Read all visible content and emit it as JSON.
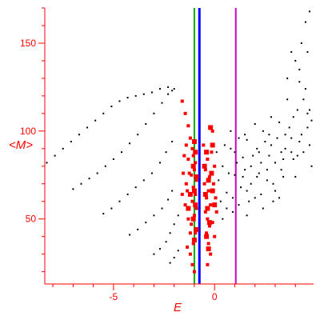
{
  "chart_data": {
    "type": "scatter",
    "xlabel": "E",
    "ylabel": "<M>",
    "xlim": [
      -8.4,
      4.9
    ],
    "ylim": [
      13,
      170
    ],
    "xticks": [
      -5,
      0
    ],
    "yticks": [
      50,
      100,
      150
    ],
    "xtick_labels": [
      "-5",
      "0"
    ],
    "ytick_labels": [
      "50",
      "100",
      "150"
    ],
    "grid": false,
    "colors": {
      "axis": "#ff0000",
      "black_points": "#000000",
      "red_points": "#ff0000",
      "green_line": "#00aa00",
      "blue_line": "#0000ff",
      "magenta_line": "#cc00cc"
    },
    "vertical_lines": [
      {
        "x": -1.0,
        "color": "#00aa00"
      },
      {
        "x": -0.75,
        "color": "#0000ff"
      },
      {
        "x": 1.05,
        "color": "#cc00cc"
      }
    ],
    "series": [
      {
        "marker": "small-dot",
        "color": "#000000",
        "points": [
          [
            -8.3,
            82
          ],
          [
            -7.9,
            86
          ],
          [
            -7.5,
            90
          ],
          [
            -7.1,
            94
          ],
          [
            -6.7,
            98
          ],
          [
            -6.3,
            102
          ],
          [
            -5.9,
            106
          ],
          [
            -5.5,
            110
          ],
          [
            -5.1,
            114
          ],
          [
            -4.7,
            117
          ],
          [
            -4.3,
            119
          ],
          [
            -3.9,
            120
          ],
          [
            -3.5,
            121
          ],
          [
            -3.1,
            122
          ],
          [
            -2.7,
            124
          ],
          [
            -2.3,
            125
          ],
          [
            -2.0,
            124
          ],
          [
            -7.0,
            67
          ],
          [
            -6.6,
            70
          ],
          [
            -6.2,
            73
          ],
          [
            -5.8,
            76
          ],
          [
            -5.4,
            80
          ],
          [
            -5.0,
            84
          ],
          [
            -4.6,
            88
          ],
          [
            -4.2,
            93
          ],
          [
            -3.8,
            98
          ],
          [
            -3.4,
            104
          ],
          [
            -3.0,
            110
          ],
          [
            -2.6,
            116
          ],
          [
            -2.3,
            121
          ],
          [
            -2.1,
            123
          ],
          [
            -5.5,
            53
          ],
          [
            -5.1,
            56
          ],
          [
            -4.7,
            60
          ],
          [
            -4.3,
            64
          ],
          [
            -3.9,
            68
          ],
          [
            -3.5,
            72
          ],
          [
            -3.1,
            76
          ],
          [
            -2.7,
            82
          ],
          [
            -2.4,
            88
          ],
          [
            -2.1,
            94
          ],
          [
            -4.2,
            41
          ],
          [
            -3.8,
            44
          ],
          [
            -3.4,
            48
          ],
          [
            -3.0,
            52
          ],
          [
            -2.6,
            56
          ],
          [
            -2.3,
            61
          ],
          [
            -2.1,
            66
          ],
          [
            -3.0,
            30
          ],
          [
            -2.7,
            33
          ],
          [
            -2.4,
            37
          ],
          [
            -2.2,
            42
          ],
          [
            -2.0,
            47
          ],
          [
            -1.8,
            52
          ],
          [
            -2.2,
            25
          ],
          [
            -2.0,
            28
          ],
          [
            -1.8,
            32
          ],
          [
            0.2,
            72
          ],
          [
            0.4,
            80
          ],
          [
            0.6,
            65
          ],
          [
            0.8,
            90
          ],
          [
            1.0,
            75
          ],
          [
            1.2,
            58
          ],
          [
            1.4,
            85
          ],
          [
            1.6,
            95
          ],
          [
            1.8,
            70
          ],
          [
            2.0,
            62
          ],
          [
            2.2,
            88
          ],
          [
            2.4,
            100
          ],
          [
            2.6,
            78
          ],
          [
            2.8,
            92
          ],
          [
            3.0,
            66
          ],
          [
            3.2,
            105
          ],
          [
            3.4,
            84
          ],
          [
            3.6,
            118
          ],
          [
            3.8,
            96
          ],
          [
            4.0,
            74
          ],
          [
            4.2,
            128
          ],
          [
            4.4,
            88
          ],
          [
            4.6,
            110
          ],
          [
            4.8,
            80
          ],
          [
            0.3,
            60
          ],
          [
            0.5,
            92
          ],
          [
            0.7,
            76
          ],
          [
            0.9,
            54
          ],
          [
            1.1,
            82
          ],
          [
            1.3,
            68
          ],
          [
            1.5,
            98
          ],
          [
            1.7,
            60
          ],
          [
            1.9,
            86
          ],
          [
            2.1,
            74
          ],
          [
            2.3,
            64
          ],
          [
            2.5,
            94
          ],
          [
            2.7,
            86
          ],
          [
            2.9,
            70
          ],
          [
            3.1,
            96
          ],
          [
            3.3,
            78
          ],
          [
            3.5,
            90
          ],
          [
            3.7,
            102
          ],
          [
            3.9,
            84
          ],
          [
            4.1,
            112
          ],
          [
            4.3,
            98
          ],
          [
            4.5,
            124
          ],
          [
            4.7,
            92
          ],
          [
            0.1,
            88
          ],
          [
            0.6,
            56
          ],
          [
            1.2,
            96
          ],
          [
            1.6,
            52
          ],
          [
            2.0,
            104
          ],
          [
            2.4,
            56
          ],
          [
            2.8,
            108
          ],
          [
            3.2,
            62
          ],
          [
            3.6,
            130
          ],
          [
            4.0,
            140
          ],
          [
            4.3,
            150
          ],
          [
            4.5,
            162
          ],
          [
            4.7,
            168
          ],
          [
            4.2,
            135
          ],
          [
            3.8,
            145
          ],
          [
            4.6,
            145
          ],
          [
            1.0,
            88
          ],
          [
            1.4,
            74
          ],
          [
            1.8,
            80
          ],
          [
            2.2,
            76
          ],
          [
            2.6,
            72
          ],
          [
            3.0,
            82
          ],
          [
            3.4,
            74
          ],
          [
            3.8,
            88
          ],
          [
            4.2,
            94
          ],
          [
            4.6,
            102
          ],
          [
            0.8,
            100
          ],
          [
            1.5,
            78
          ],
          [
            2.1,
            90
          ],
          [
            2.7,
            98
          ],
          [
            3.3,
            88
          ],
          [
            3.9,
            108
          ],
          [
            4.4,
            118
          ],
          [
            4.8,
            106
          ],
          [
            0.4,
            50
          ],
          [
            0.9,
            62
          ],
          [
            1.6,
            66
          ],
          [
            2.3,
            82
          ],
          [
            2.9,
            60
          ],
          [
            3.5,
            98
          ],
          [
            4.1,
            86
          ],
          [
            4.7,
            112
          ]
        ]
      },
      {
        "marker": "square",
        "color": "#ff0000",
        "points": [
          [
            -1.6,
            117
          ],
          [
            -1.45,
            110
          ],
          [
            -1.3,
            103
          ],
          [
            -1.2,
            96
          ],
          [
            -1.1,
            90
          ],
          [
            -1.05,
            86
          ],
          [
            -0.95,
            82
          ],
          [
            -1.0,
            78
          ],
          [
            -1.15,
            75
          ],
          [
            -0.9,
            72
          ],
          [
            -1.05,
            68
          ],
          [
            -0.95,
            64
          ],
          [
            -1.1,
            60
          ],
          [
            -0.9,
            56
          ],
          [
            -1.0,
            52
          ],
          [
            -1.15,
            47
          ],
          [
            -0.95,
            42
          ],
          [
            -1.05,
            36
          ],
          [
            -1.2,
            30
          ],
          [
            -1.1,
            24
          ],
          [
            -1.0,
            20
          ],
          [
            -0.55,
            92
          ],
          [
            -0.35,
            84
          ],
          [
            -0.45,
            78
          ],
          [
            -0.25,
            74
          ],
          [
            -0.5,
            70
          ],
          [
            -0.3,
            66
          ],
          [
            -0.4,
            62
          ],
          [
            -0.2,
            58
          ],
          [
            -0.45,
            54
          ],
          [
            -0.35,
            50
          ],
          [
            -0.25,
            46
          ],
          [
            -0.4,
            42
          ],
          [
            -0.3,
            36
          ],
          [
            -0.2,
            30
          ],
          [
            -0.35,
            24
          ],
          [
            -0.1,
            100
          ],
          [
            -0.15,
            88
          ],
          [
            0.0,
            80
          ],
          [
            -0.05,
            70
          ],
          [
            0.05,
            62
          ],
          [
            0.1,
            54
          ],
          [
            -0.1,
            48
          ],
          [
            0.0,
            40
          ],
          [
            -1.4,
            92
          ],
          [
            -1.3,
            84
          ],
          [
            -1.25,
            76
          ],
          [
            -1.35,
            66
          ],
          [
            -1.45,
            58
          ],
          [
            -1.3,
            50
          ],
          [
            -1.2,
            42
          ],
          [
            -1.35,
            34
          ],
          [
            -1.5,
            86
          ],
          [
            -1.55,
            76
          ],
          [
            -1.4,
            70
          ],
          [
            -1.6,
            64
          ]
        ]
      },
      {
        "marker": "large-square",
        "color": "#ff0000",
        "points": [
          [
            -1.0,
            94
          ],
          [
            -0.95,
            88
          ],
          [
            -1.05,
            80
          ],
          [
            -0.9,
            74
          ],
          [
            -1.0,
            66
          ],
          [
            -0.95,
            58
          ],
          [
            -1.05,
            50
          ],
          [
            -0.9,
            44
          ],
          [
            -1.0,
            38
          ],
          [
            -0.4,
            88
          ],
          [
            -0.5,
            80
          ],
          [
            -0.3,
            72
          ],
          [
            -0.45,
            64
          ],
          [
            -0.35,
            56
          ],
          [
            -0.25,
            48
          ],
          [
            -0.4,
            40
          ],
          [
            -0.3,
            33
          ],
          [
            -0.2,
            102
          ],
          [
            -0.1,
            66
          ],
          [
            0.0,
            58
          ],
          [
            -0.15,
            76
          ],
          [
            -1.2,
            64
          ],
          [
            -1.3,
            56
          ],
          [
            -0.1,
            92
          ]
        ]
      }
    ]
  }
}
